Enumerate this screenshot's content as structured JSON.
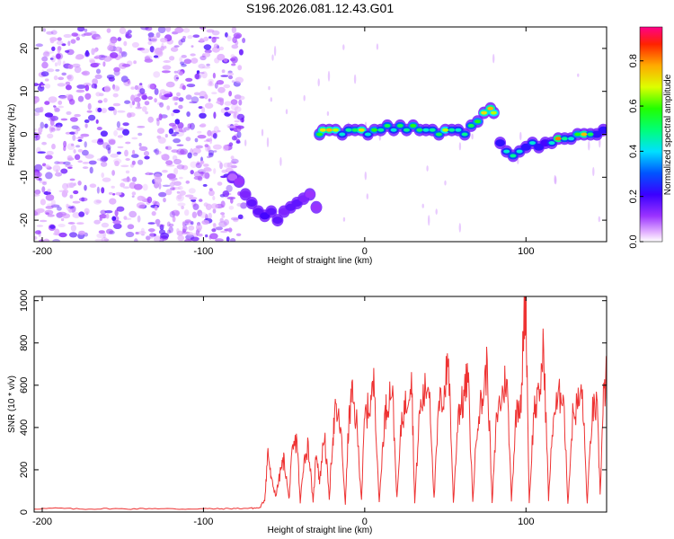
{
  "figure": {
    "title": "S196.2026.081.12.43.G01",
    "background": "#ffffff"
  },
  "chart_data": [
    {
      "id": "spectrogram",
      "type": "heatmap",
      "xlabel": "Height of straight line (km)",
      "ylabel": "Frequency (Hz)",
      "xlim": [
        -205,
        150
      ],
      "ylim": [
        -25,
        25
      ],
      "x_ticks": [
        -200,
        -100,
        0,
        100
      ],
      "y_ticks": [
        -20,
        -10,
        0,
        10,
        20
      ],
      "grid": false,
      "colorbar": {
        "label": "Normalized spectral amplitude",
        "ticks": [
          0.0,
          0.2,
          0.4,
          0.6,
          0.8
        ],
        "range": [
          0.0,
          0.95
        ],
        "colormap": "rainbow"
      },
      "noise_region": {
        "x_from": -205,
        "x_to": -75,
        "freq_range": [
          -25,
          25
        ],
        "amplitude": [
          0.0,
          0.15
        ]
      },
      "tone_track": {
        "x": [
          -82,
          -78,
          -74,
          -70,
          -66,
          -62,
          -58,
          -54,
          -50,
          -46,
          -42,
          -38,
          -34,
          -30,
          -28,
          -26,
          -22,
          -18,
          -14,
          -10,
          -6,
          -2,
          2,
          6,
          10,
          14,
          18,
          22,
          26,
          30,
          34,
          38,
          42,
          46,
          50,
          54,
          58,
          62,
          66,
          70,
          74,
          78,
          80,
          84,
          88,
          92,
          96,
          100,
          104,
          108,
          112,
          116,
          120,
          124,
          128,
          132,
          136,
          140,
          144,
          148
        ],
        "freq": [
          -10,
          -11,
          -14,
          -16,
          -18,
          -19,
          -18,
          -20,
          -18,
          -17,
          -16,
          -15,
          -14,
          -17,
          0,
          1,
          1,
          1,
          0,
          1,
          1,
          1,
          0,
          1,
          1,
          2,
          1,
          2,
          1,
          2,
          1,
          1,
          1,
          0,
          1,
          1,
          1,
          0,
          2,
          3,
          5,
          6,
          5,
          -2,
          -4,
          -5,
          -4,
          -3,
          -2,
          -3,
          -2,
          -2,
          -1,
          -1,
          -1,
          0,
          0,
          0,
          0,
          1
        ],
        "amplitude": [
          0.15,
          0.2,
          0.25,
          0.3,
          0.3,
          0.35,
          0.3,
          0.3,
          0.25,
          0.3,
          0.3,
          0.25,
          0.2,
          0.2,
          0.6,
          0.75,
          0.8,
          0.7,
          0.45,
          0.5,
          0.55,
          0.75,
          0.45,
          0.6,
          0.5,
          0.55,
          0.45,
          0.55,
          0.5,
          0.6,
          0.55,
          0.45,
          0.5,
          0.55,
          0.7,
          0.5,
          0.45,
          0.5,
          0.55,
          0.6,
          0.75,
          0.8,
          0.7,
          0.4,
          0.45,
          0.5,
          0.45,
          0.4,
          0.45,
          0.4,
          0.35,
          0.45,
          0.85,
          0.5,
          0.45,
          0.6,
          0.8,
          0.55,
          0.4,
          0.4
        ]
      }
    },
    {
      "id": "snr",
      "type": "line",
      "xlabel": "Height of straight line (km)",
      "ylabel": "SNR (10 * v/v)",
      "xlim": [
        -205,
        150
      ],
      "ylim": [
        0,
        1020
      ],
      "x_ticks": [
        -200,
        -100,
        0,
        100
      ],
      "y_ticks": [
        0,
        200,
        400,
        600,
        800,
        1000
      ],
      "grid": false,
      "series": [
        {
          "color": "#ee3333",
          "x": [
            -205,
            -190,
            -175,
            -160,
            -145,
            -130,
            -115,
            -100,
            -90,
            -80,
            -70,
            -65,
            -62,
            -60,
            -58,
            -55,
            -52,
            -50,
            -47,
            -45,
            -42,
            -40,
            -38,
            -35,
            -32,
            -30,
            -28,
            -25,
            -22,
            -20,
            -18,
            -15,
            -12,
            -10,
            -8,
            -5,
            -2,
            0,
            3,
            6,
            9,
            12,
            14,
            17,
            20,
            23,
            26,
            29,
            31,
            34,
            37,
            40,
            43,
            46,
            49,
            52,
            55,
            58,
            61,
            64,
            67,
            70,
            73,
            76,
            79,
            82,
            85,
            88,
            91,
            94,
            97,
            99,
            100,
            102,
            105,
            108,
            111,
            114,
            117,
            120,
            123,
            126,
            129,
            132,
            135,
            138,
            141,
            144,
            146,
            148,
            150
          ],
          "y": [
            15,
            18,
            14,
            16,
            15,
            17,
            14,
            16,
            15,
            17,
            18,
            20,
            60,
            290,
            150,
            80,
            200,
            250,
            60,
            280,
            350,
            40,
            230,
            320,
            40,
            300,
            140,
            380,
            60,
            340,
            480,
            400,
            40,
            410,
            550,
            420,
            60,
            450,
            500,
            610,
            40,
            420,
            520,
            600,
            60,
            450,
            520,
            680,
            40,
            470,
            560,
            620,
            60,
            500,
            550,
            730,
            40,
            480,
            520,
            650,
            50,
            460,
            530,
            700,
            40,
            470,
            540,
            650,
            60,
            480,
            550,
            940,
            1010,
            40,
            490,
            530,
            780,
            60,
            460,
            520,
            600,
            40,
            450,
            510,
            560,
            40,
            470,
            500,
            90,
            520,
            650
          ]
        }
      ]
    }
  ]
}
